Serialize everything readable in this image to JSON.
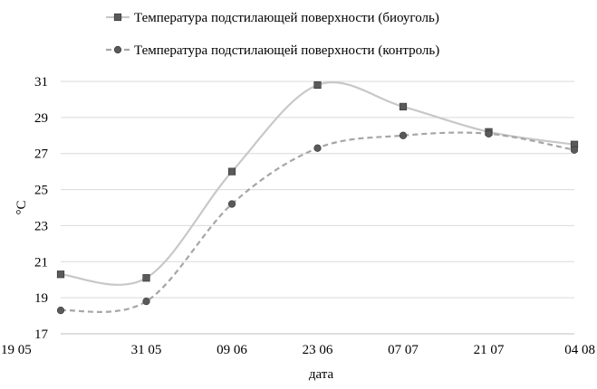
{
  "chart_data": {
    "type": "line",
    "categories": [
      "19 05",
      "31 05",
      "09 06",
      "23 06",
      "07 07",
      "21 07",
      "04 08"
    ],
    "series": [
      {
        "name": "Температура подстилающей поверхности (биоуголь)",
        "values": [
          20.3,
          20.1,
          26.0,
          30.8,
          29.6,
          28.2,
          27.5
        ],
        "color": "#c8c8c8",
        "line_style": "solid",
        "marker": "square",
        "marker_color": "#5a5a5a"
      },
      {
        "name": "Температура подстилающей поверхности (контроль)",
        "values": [
          18.3,
          18.8,
          24.2,
          27.3,
          28.0,
          28.1,
          27.2
        ],
        "color": "#a6a6a6",
        "line_style": "dashed",
        "marker": "circle",
        "marker_color": "#5a5a5a"
      }
    ],
    "xlabel": "дата",
    "ylabel": "°C",
    "ylim": [
      17,
      31
    ],
    "yticks": [
      17,
      19,
      21,
      23,
      25,
      27,
      29,
      31
    ],
    "grid": "horizontal",
    "legend": "top",
    "smooth": true
  }
}
